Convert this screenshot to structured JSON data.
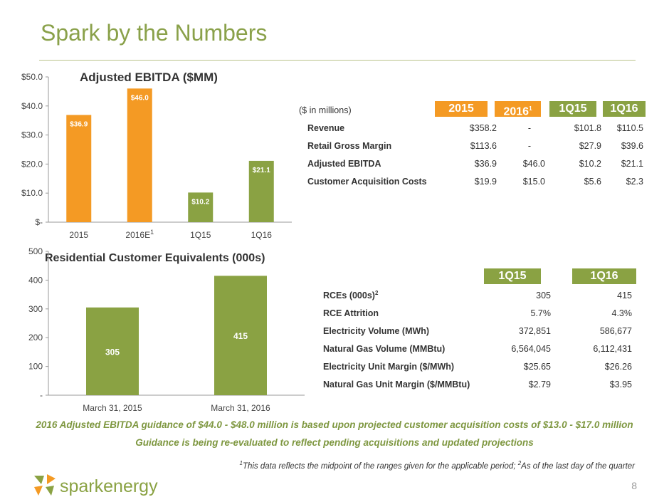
{
  "slide": {
    "title": "Spark by the Numbers",
    "page_number": "8",
    "logo_text": "sparkenergy"
  },
  "colors": {
    "accent_green": "#8aa243",
    "accent_orange": "#f49a24",
    "title_green": "#8aa14a"
  },
  "chart_data": [
    {
      "type": "bar",
      "title": "Adjusted EBITDA  ($MM)",
      "categories": [
        "2015",
        "2016E",
        "1Q15",
        "1Q16"
      ],
      "category_superscripts": [
        "",
        "1",
        "",
        ""
      ],
      "values": [
        36.9,
        46.0,
        10.2,
        21.1
      ],
      "value_labels": [
        "$36.9",
        "$46.0",
        "$10.2",
        "$21.1"
      ],
      "bar_colors": [
        "#f49a24",
        "#f49a24",
        "#8aa243",
        "#8aa243"
      ],
      "yticks": [
        "$-",
        "$10.0",
        "$20.0",
        "$30.0",
        "$40.0",
        "$50.0"
      ],
      "ylim": [
        0,
        50
      ],
      "grid": false
    },
    {
      "type": "bar",
      "title": "Residential Customer Equivalents (000s)",
      "categories": [
        "March 31, 2015",
        "March 31, 2016"
      ],
      "values": [
        305,
        415
      ],
      "value_labels": [
        "305",
        "415"
      ],
      "bar_colors": [
        "#8aa243",
        "#8aa243"
      ],
      "yticks": [
        "-",
        "100",
        "200",
        "300",
        "400",
        "500"
      ],
      "ylim": [
        0,
        500
      ],
      "grid": false
    }
  ],
  "financial_table": {
    "units_label": "($ in millions)",
    "columns": [
      {
        "label": "2015",
        "sup": ""
      },
      {
        "label": "2016",
        "sup": "1"
      },
      {
        "label": "1Q15",
        "sup": ""
      },
      {
        "label": "1Q16",
        "sup": ""
      }
    ],
    "rows": [
      {
        "label": "Revenue",
        "values": [
          "$358.2",
          "-",
          "$101.8",
          "$110.5"
        ]
      },
      {
        "label": "Retail Gross Margin",
        "values": [
          "$113.6",
          "-",
          "$27.9",
          "$39.6"
        ]
      },
      {
        "label": "Adjusted EBITDA",
        "values": [
          "$36.9",
          "$46.0",
          "$10.2",
          "$21.1"
        ]
      },
      {
        "label": "Customer Acquisition Costs",
        "values": [
          "$19.9",
          "$15.0",
          "$5.6",
          "$2.3"
        ]
      }
    ]
  },
  "operations_table": {
    "columns": [
      "1Q15",
      "1Q16"
    ],
    "rows": [
      {
        "label": "RCEs (000s)",
        "sup": "2",
        "values": [
          "305",
          "415"
        ]
      },
      {
        "label": "RCE Attrition",
        "sup": "",
        "values": [
          "5.7%",
          "4.3%"
        ]
      },
      {
        "label": "Electricity Volume (MWh)",
        "sup": "",
        "values": [
          "372,851",
          "586,677"
        ]
      },
      {
        "label": "Natural Gas Volume (MMBtu)",
        "sup": "",
        "values": [
          "6,564,045",
          "6,112,431"
        ]
      },
      {
        "label": "Electricity Unit Margin ($/MWh)",
        "sup": "",
        "values": [
          "$25.65",
          "$26.26"
        ]
      },
      {
        "label": "Natural Gas Unit Margin ($/MMBtu)",
        "sup": "",
        "values": [
          "$2.79",
          "$3.95"
        ]
      }
    ]
  },
  "notes": {
    "guidance_line1": "2016 Adjusted EBITDA guidance of $44.0 - $48.0 million is based upon projected customer acquisition costs of $13.0 - $17.0 million",
    "guidance_line2": "Guidance is being re-evaluated to reflect pending acquisitions and updated projections",
    "footnote_sup1": "1",
    "footnote_text1": "This data reflects the midpoint of the ranges given for the applicable period; ",
    "footnote_sup2": "2",
    "footnote_text2": "As of the last day of the quarter"
  }
}
